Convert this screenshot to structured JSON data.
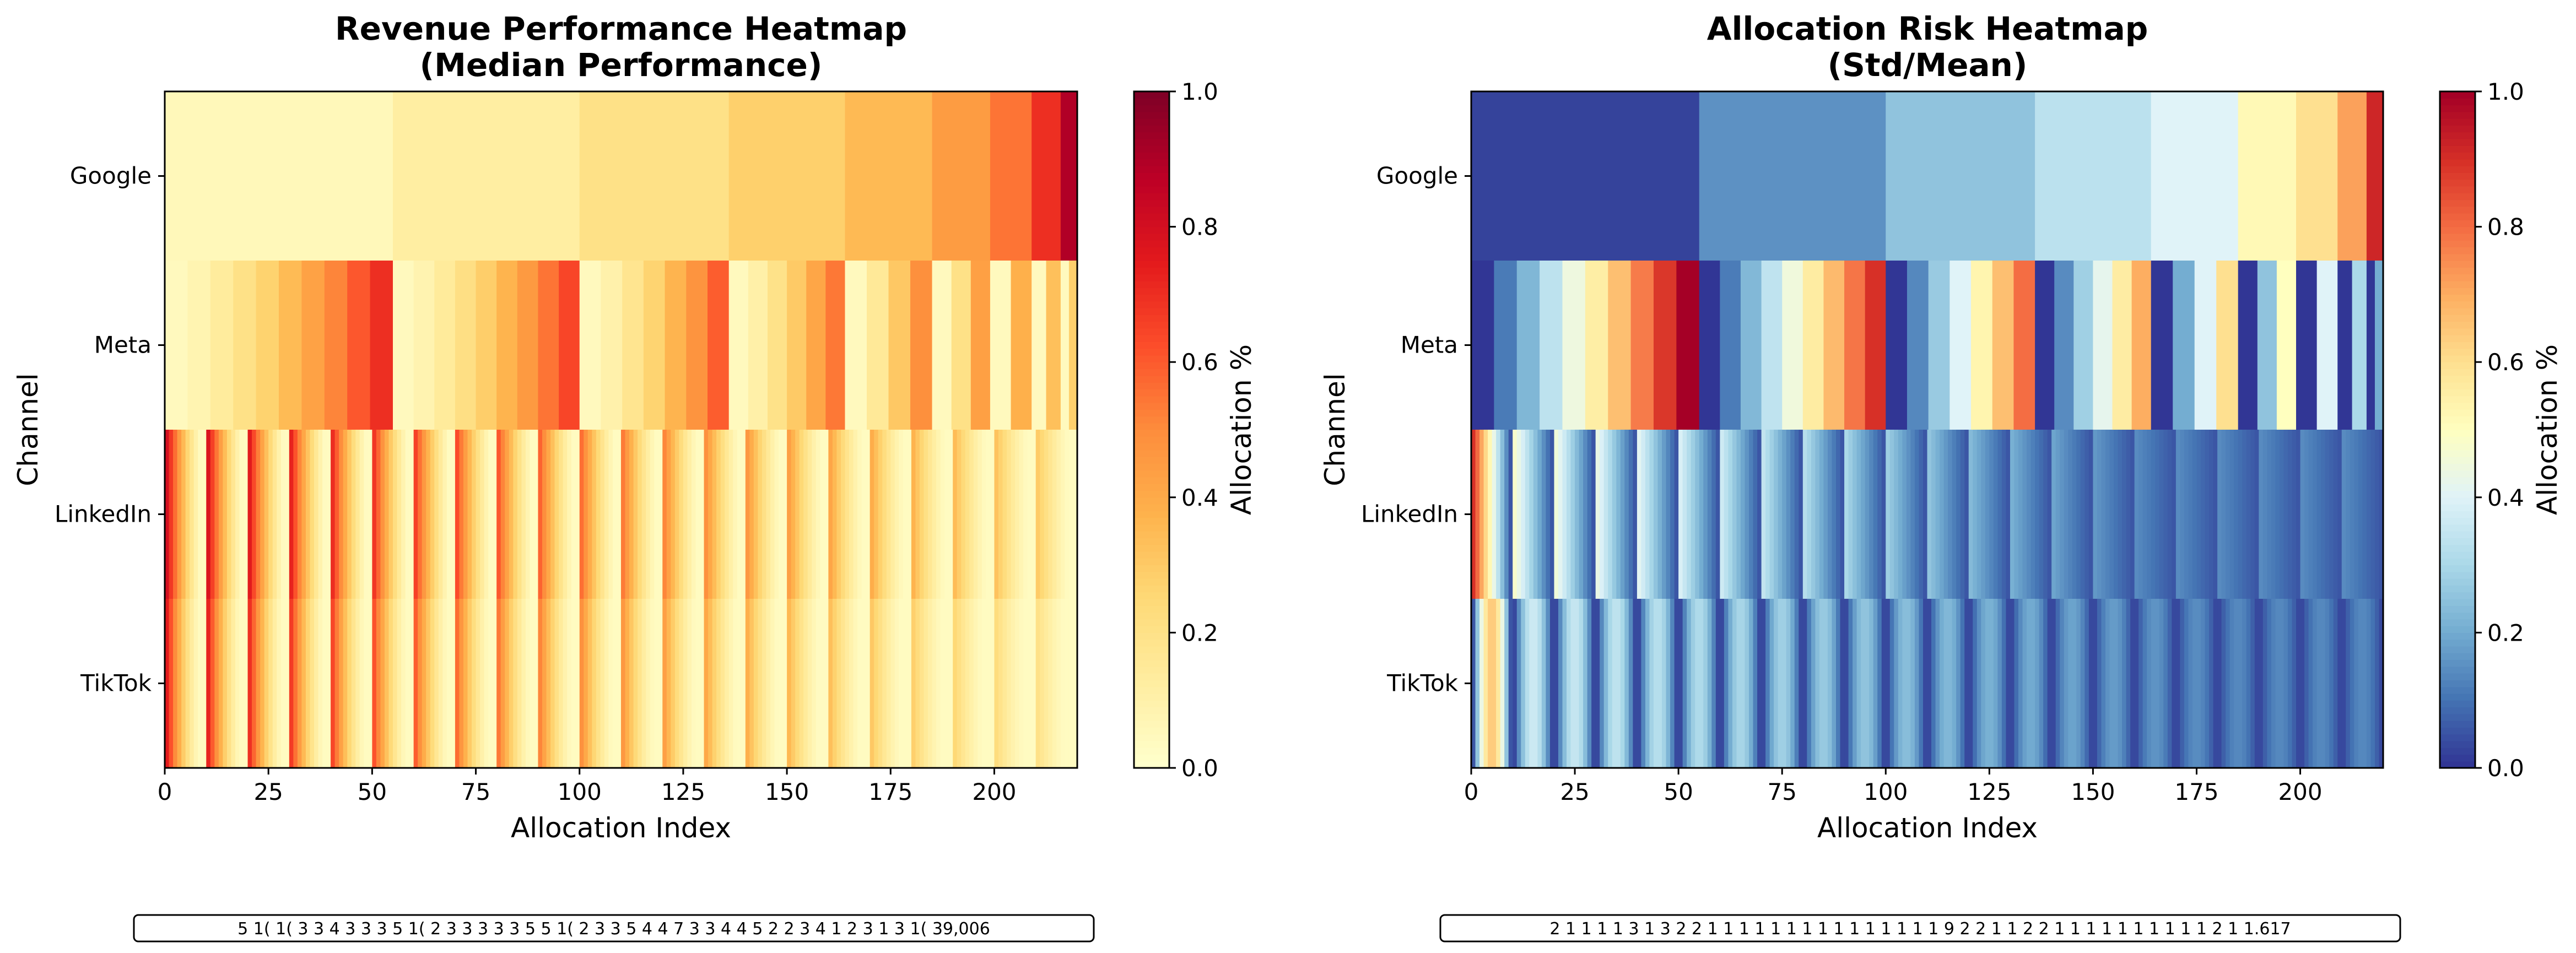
{
  "chart_data": [
    {
      "type": "heatmap",
      "title_line1": "Revenue Performance Heatmap",
      "title_line2": "(Median Performance)",
      "xlabel": "Allocation Index",
      "ylabel": "Channel",
      "rows": [
        "Google",
        "Meta",
        "LinkedIn",
        "TikTok"
      ],
      "x_ticks": [
        "0",
        "25",
        "50",
        "75",
        "100",
        "125",
        "150",
        "175",
        "200"
      ],
      "xlim": [
        0,
        220
      ],
      "colormap": "YlOrRd",
      "colorbar_label": "Allocation %",
      "colorbar_ticks": [
        "0.0",
        "0.2",
        "0.4",
        "0.6",
        "0.8",
        "1.0"
      ],
      "clim": [
        0,
        1
      ],
      "google_segments": [
        {
          "start": 0,
          "end": 55,
          "value": 0.05
        },
        {
          "start": 55,
          "end": 100,
          "value": 0.12
        },
        {
          "start": 100,
          "end": 136,
          "value": 0.2
        },
        {
          "start": 136,
          "end": 164,
          "value": 0.28
        },
        {
          "start": 164,
          "end": 185,
          "value": 0.35
        },
        {
          "start": 185,
          "end": 199,
          "value": 0.45
        },
        {
          "start": 199,
          "end": 209,
          "value": 0.55
        },
        {
          "start": 209,
          "end": 216,
          "value": 0.7
        },
        {
          "start": 216,
          "end": 220,
          "value": 0.9
        }
      ],
      "strip_text": "5 1( 1( 3 3 4 3 3 3 5 1( 2 3 3 3 3 3 5 5 1( 2 3 3 5 4 4 7 3 3 4 4 5 2 2 3 4 1 2 3 1 3 1( 39,006"
    },
    {
      "type": "heatmap",
      "title_line1": "Allocation Risk Heatmap",
      "title_line2": "(Std/Mean)",
      "xlabel": "Allocation Index",
      "ylabel": "Channel",
      "rows": [
        "Google",
        "Meta",
        "LinkedIn",
        "TikTok"
      ],
      "x_ticks": [
        "0",
        "25",
        "50",
        "75",
        "100",
        "125",
        "150",
        "175",
        "200"
      ],
      "xlim": [
        0,
        220
      ],
      "colormap": "RdYlBu_r",
      "colorbar_label": "Allocation %",
      "colorbar_ticks": [
        "0.0",
        "0.2",
        "0.4",
        "0.6",
        "0.8",
        "1.0"
      ],
      "clim": [
        0,
        1
      ],
      "google_segments": [
        {
          "start": 0,
          "end": 55,
          "value": 0.02
        },
        {
          "start": 55,
          "end": 100,
          "value": 0.15
        },
        {
          "start": 100,
          "end": 136,
          "value": 0.25
        },
        {
          "start": 136,
          "end": 164,
          "value": 0.33
        },
        {
          "start": 164,
          "end": 185,
          "value": 0.4
        },
        {
          "start": 185,
          "end": 199,
          "value": 0.52
        },
        {
          "start": 199,
          "end": 209,
          "value": 0.6
        },
        {
          "start": 209,
          "end": 216,
          "value": 0.72
        },
        {
          "start": 216,
          "end": 220,
          "value": 0.92
        }
      ],
      "strip_text": "2 1 1 1 1 3 1 3 2 2 1 1 1 1 1 1 1 1 1 1 1 1 1 1 1 9 2 2 1 1 2 2 1 1 1 1 1 1 1 1 1 1 2 1 1.617"
    }
  ]
}
